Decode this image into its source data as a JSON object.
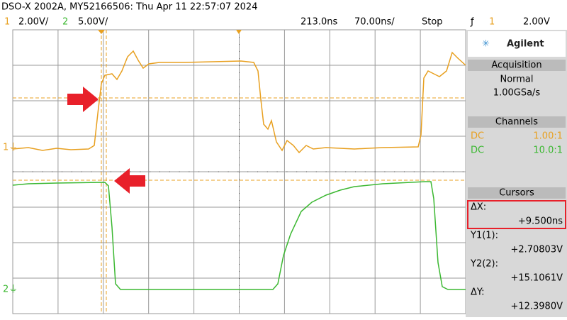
{
  "header": {
    "title": "DSO-X 2002A, MY52166506: Thu Apr 11 22:57:07 2024",
    "ch1": "1",
    "ch1_scale": "2.00V/",
    "ch2": "2",
    "ch2_scale": "5.00V/",
    "delay": "213.0ns",
    "timebase": "70.00ns/",
    "run_state": "Stop",
    "trigger_source": "1",
    "trigger_level": "2.00V"
  },
  "panel": {
    "brand": "Agilent",
    "acquisition": {
      "title": "Acquisition",
      "mode": "Normal",
      "rate": "1.00GSa/s"
    },
    "channels": {
      "title": "Channels",
      "rows": [
        [
          "DC",
          "1.00:1"
        ],
        [
          "DC",
          "10.0:1"
        ]
      ]
    },
    "cursors": {
      "title": "Cursors",
      "items": [
        [
          "ΔX:",
          "+9.500ns"
        ],
        [
          "Y1(1):",
          "+2.70803V"
        ],
        [
          "Y2(2):",
          "+15.1061V"
        ],
        [
          "ΔY:",
          "+12.3980V"
        ]
      ]
    }
  }
}
